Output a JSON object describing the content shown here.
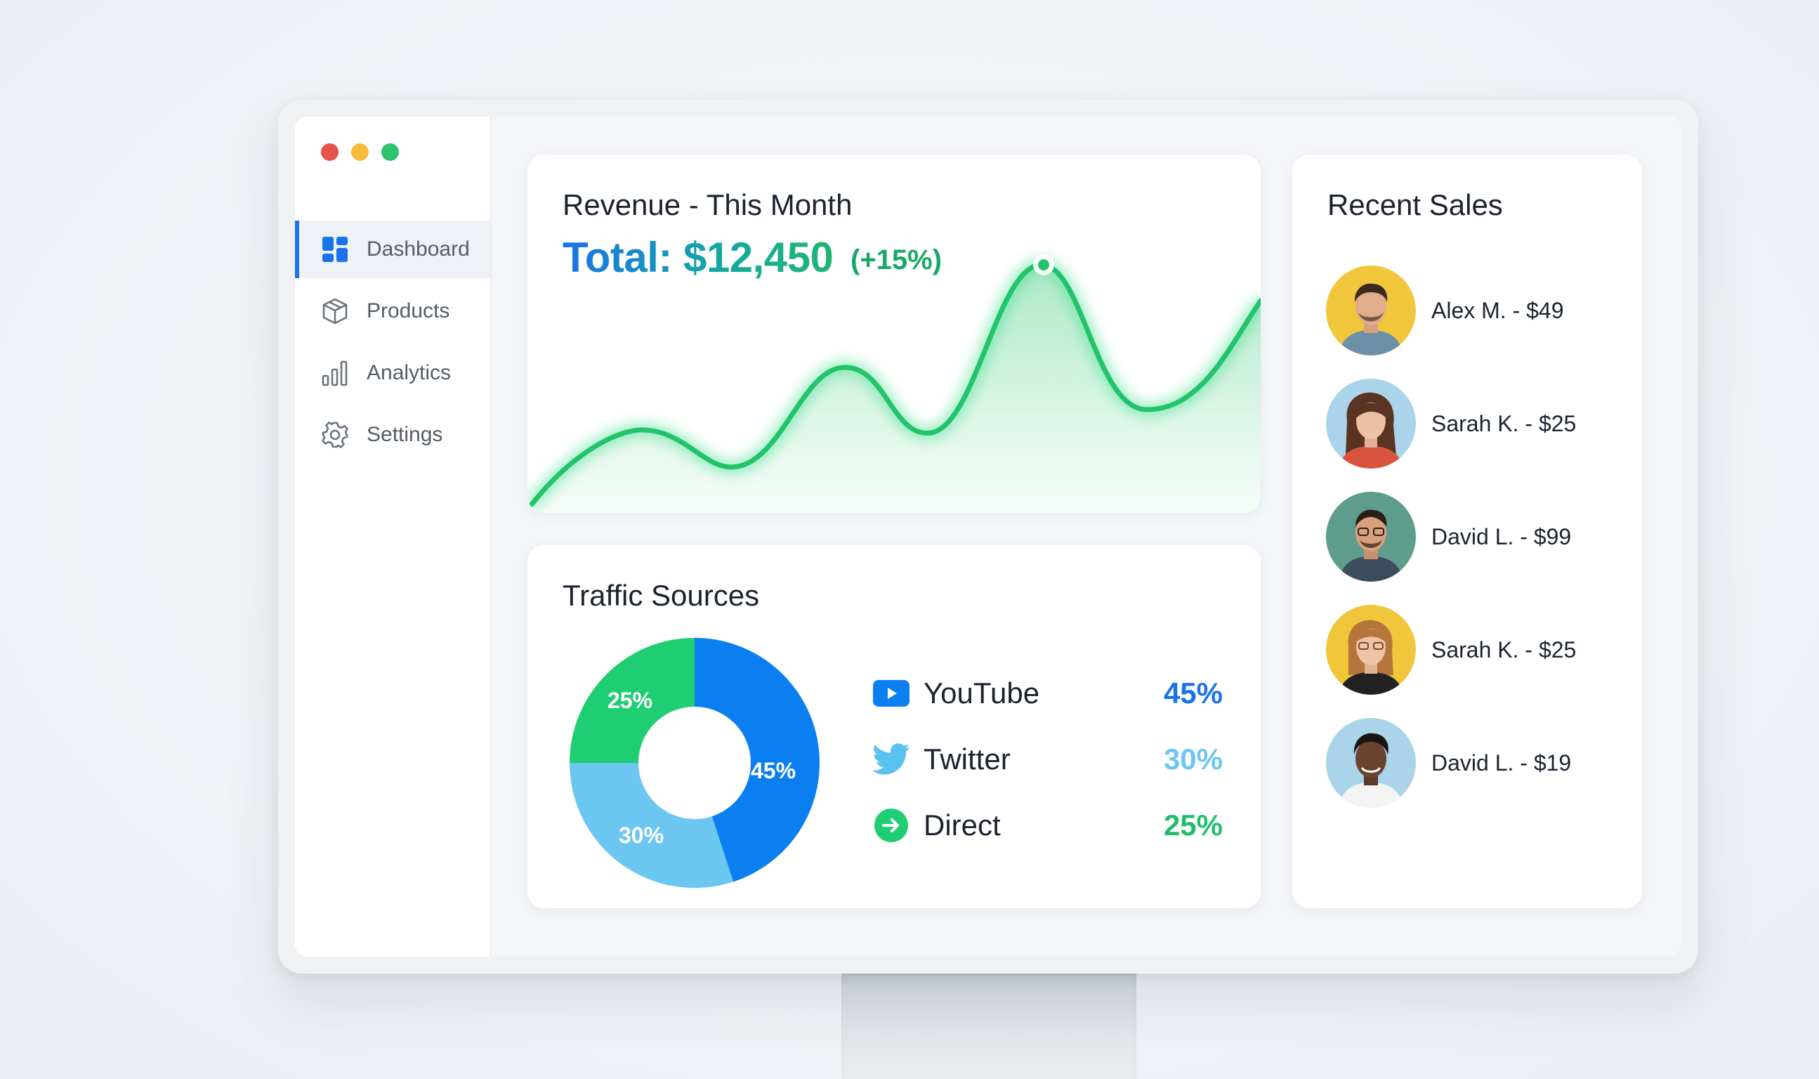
{
  "window": {
    "traffic_lights": [
      "#e5534b",
      "#f4bd3a",
      "#2bc46b"
    ]
  },
  "sidebar": {
    "items": [
      {
        "label": "Dashboard",
        "icon": "dashboard-icon",
        "active": true
      },
      {
        "label": "Products",
        "icon": "box-icon",
        "active": false
      },
      {
        "label": "Analytics",
        "icon": "bar-chart-icon",
        "active": false
      },
      {
        "label": "Settings",
        "icon": "gear-icon",
        "active": false
      }
    ]
  },
  "revenue": {
    "title": "Revenue - This Month",
    "total": "Total: $12,450",
    "change": "(+15%)",
    "line_color": "#22c36b"
  },
  "traffic": {
    "title": "Traffic Sources",
    "sources": [
      {
        "name": "YouTube",
        "percent": "45%",
        "value": 45,
        "color": "#0b7ff0",
        "icon": "youtube-icon"
      },
      {
        "name": "Twitter",
        "percent": "30%",
        "value": 30,
        "color": "#6cc7f0",
        "icon": "twitter-icon"
      },
      {
        "name": "Direct",
        "percent": "25%",
        "value": 25,
        "color": "#1fcd73",
        "icon": "direct-arrow-icon"
      }
    ]
  },
  "sales": {
    "title": "Recent Sales",
    "items": [
      {
        "text": "Alex M. - $49",
        "avatar_bg": "#f2c63b"
      },
      {
        "text": "Sarah K. - $25",
        "avatar_bg": "#a9d4ea"
      },
      {
        "text": "David L. - $99",
        "avatar_bg": "#5e9c8c"
      },
      {
        "text": "Sarah K. - $25",
        "avatar_bg": "#f2c63b"
      },
      {
        "text": "David L. - $19",
        "avatar_bg": "#a9d4ea"
      }
    ]
  }
}
